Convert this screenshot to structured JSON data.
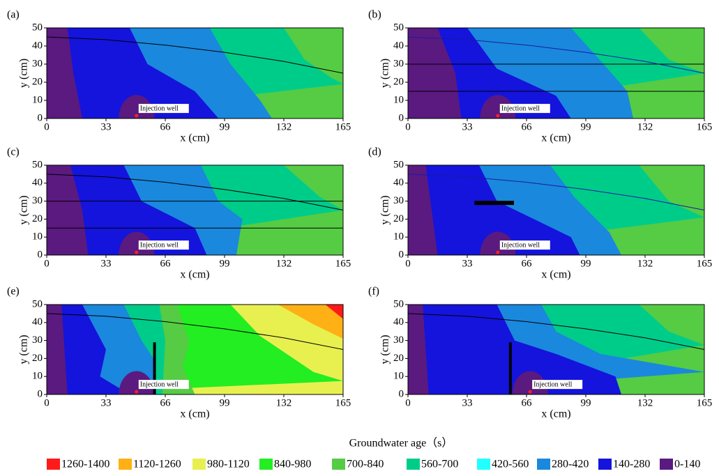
{
  "chart_data": [
    {
      "type": "contour",
      "panel_label": "(a)",
      "xlabel": "x (cm)",
      "ylabel": "y (cm)",
      "xlim": [
        0,
        165
      ],
      "ylim": [
        0,
        50
      ],
      "xticks": [
        0,
        33,
        66,
        99,
        132,
        165
      ],
      "yticks": [
        0,
        10,
        20,
        30,
        40,
        50
      ],
      "annotation": "Injection well",
      "well": {
        "x": 50,
        "y": 1.5
      },
      "water_table": {
        "x": [
          0,
          33,
          66,
          99,
          132,
          165
        ],
        "y": [
          45,
          43.5,
          40.5,
          36.5,
          31.5,
          25
        ],
        "color": "#000000"
      },
      "barriers": []
    },
    {
      "type": "contour",
      "panel_label": "(b)",
      "xlabel": "x (cm)",
      "ylabel": "y (cm)",
      "xlim": [
        0,
        165
      ],
      "ylim": [
        0,
        50
      ],
      "xticks": [
        0,
        33,
        66,
        99,
        132,
        165
      ],
      "yticks": [
        0,
        10,
        20,
        30,
        40,
        50
      ],
      "annotation": "Injection well",
      "well": {
        "x": 50,
        "y": 1.5
      },
      "water_table": {
        "x": [
          0,
          33,
          66,
          99,
          132,
          165
        ],
        "y": [
          45,
          43.5,
          40.5,
          36.5,
          31.5,
          25
        ],
        "color": "#1a1aa0"
      },
      "barriers": [
        {
          "x": [
            0,
            165
          ],
          "y": [
            30,
            30
          ]
        },
        {
          "x": [
            0,
            165
          ],
          "y": [
            15,
            15
          ]
        }
      ]
    },
    {
      "type": "contour",
      "panel_label": "(c)",
      "xlabel": "x (cm)",
      "ylabel": "y (cm)",
      "xlim": [
        0,
        165
      ],
      "ylim": [
        0,
        50
      ],
      "xticks": [
        0,
        33,
        66,
        99,
        132,
        165
      ],
      "yticks": [
        0,
        10,
        20,
        30,
        40,
        50
      ],
      "annotation": "Injection well",
      "well": {
        "x": 50,
        "y": 1.5
      },
      "water_table": {
        "x": [
          0,
          33,
          66,
          99,
          132,
          165
        ],
        "y": [
          45,
          43.5,
          40.5,
          36.5,
          31.5,
          25
        ],
        "color": "#000000"
      },
      "barriers": [
        {
          "x": [
            0,
            165
          ],
          "y": [
            30,
            30
          ]
        },
        {
          "x": [
            0,
            165
          ],
          "y": [
            15,
            15
          ]
        }
      ]
    },
    {
      "type": "contour",
      "panel_label": "(d)",
      "xlabel": "x (cm)",
      "ylabel": "y (cm)",
      "xlim": [
        0,
        165
      ],
      "ylim": [
        0,
        50
      ],
      "xticks": [
        0,
        33,
        66,
        99,
        132,
        165
      ],
      "yticks": [
        0,
        10,
        20,
        30,
        40,
        50
      ],
      "annotation": "Injection well",
      "well": {
        "x": 50,
        "y": 1.5
      },
      "water_table": {
        "x": [
          0,
          33,
          66,
          99,
          132,
          165
        ],
        "y": [
          45,
          43.5,
          40.5,
          36.5,
          31.5,
          25
        ],
        "color": "#1a1aa0"
      },
      "barriers": [
        {
          "x": [
            37,
            59
          ],
          "y": [
            29,
            29
          ]
        }
      ]
    },
    {
      "type": "contour",
      "panel_label": "(e)",
      "xlabel": "x (cm)",
      "ylabel": "y (cm)",
      "xlim": [
        0,
        165
      ],
      "ylim": [
        0,
        50
      ],
      "xticks": [
        0,
        33,
        66,
        99,
        132,
        165
      ],
      "yticks": [
        0,
        10,
        20,
        30,
        40,
        50
      ],
      "annotation": "Injection well",
      "well": {
        "x": 50,
        "y": 1.5
      },
      "water_table": {
        "x": [
          0,
          33,
          66,
          99,
          132,
          165
        ],
        "y": [
          45,
          43.5,
          40.5,
          36.5,
          31.5,
          25
        ],
        "color": "#000000"
      },
      "barriers": [
        {
          "x": [
            60,
            60
          ],
          "y": [
            0,
            29
          ]
        }
      ]
    },
    {
      "type": "contour",
      "panel_label": "(f)",
      "xlabel": "x (cm)",
      "ylabel": "y (cm)",
      "xlim": [
        0,
        165
      ],
      "ylim": [
        0,
        50
      ],
      "xticks": [
        0,
        33,
        66,
        99,
        132,
        165
      ],
      "yticks": [
        0,
        10,
        20,
        30,
        40,
        50
      ],
      "annotation": "Injection well",
      "well": {
        "x": 68,
        "y": 1.5
      },
      "water_table": {
        "x": [
          0,
          33,
          66,
          99,
          132,
          165
        ],
        "y": [
          45,
          43.5,
          40.5,
          36.5,
          31.5,
          25
        ],
        "color": "#000000"
      },
      "barriers": [
        {
          "x": [
            57,
            57
          ],
          "y": [
            0,
            29
          ]
        }
      ]
    }
  ],
  "legend": {
    "title": "Groundwater age（s）",
    "items": [
      {
        "label": "1260-1400",
        "color": "#ff1a1a"
      },
      {
        "label": "1120-1260",
        "color": "#ffb014"
      },
      {
        "label": "980-1120",
        "color": "#e8f050"
      },
      {
        "label": "840-980",
        "color": "#22ee22"
      },
      {
        "label": "700-840",
        "color": "#55cc44"
      },
      {
        "label": "560-700",
        "color": "#00cc8a"
      },
      {
        "label": "420-560",
        "color": "#22ffff"
      },
      {
        "label": "280-420",
        "color": "#1a88dd"
      },
      {
        "label": "140-280",
        "color": "#1414dc"
      },
      {
        "label": "0-140",
        "color": "#5a1a80"
      }
    ]
  }
}
